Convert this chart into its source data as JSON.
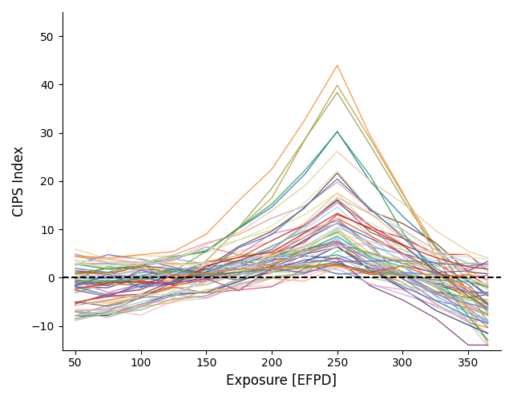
{
  "title": "",
  "xlabel": "Exposure [EFPD]",
  "ylabel": "CIPS Index",
  "xlim": [
    40,
    375
  ],
  "ylim": [
    -15,
    55
  ],
  "xticks": [
    50,
    100,
    150,
    200,
    250,
    300,
    350
  ],
  "yticks": [
    -10,
    0,
    10,
    20,
    30,
    40,
    50
  ],
  "dashed_y": 0,
  "x_points": [
    50,
    75,
    100,
    125,
    150,
    175,
    200,
    225,
    250,
    275,
    300,
    325,
    350,
    365
  ],
  "figsize": [
    6.4,
    4.99
  ],
  "dpi": 100,
  "background": "#ffffff",
  "num_series": 65,
  "seed": 42
}
